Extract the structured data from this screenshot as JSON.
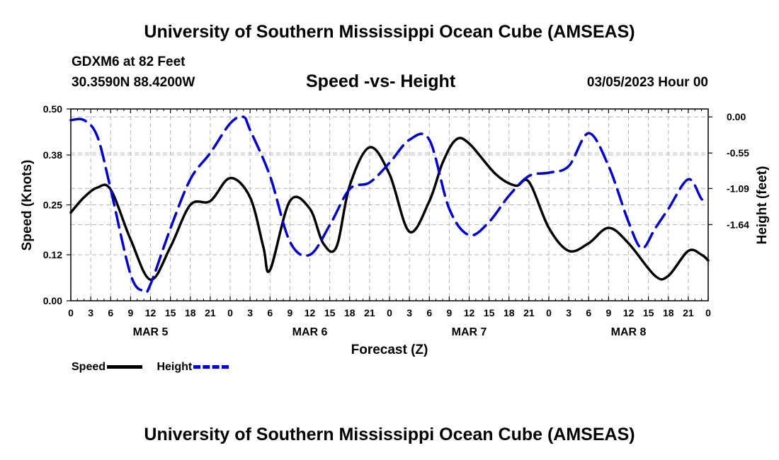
{
  "header": {
    "title": "University of Southern Mississippi Ocean Cube (AMSEAS)",
    "station": "GDXM6 at 82 Feet",
    "coordinates": "30.3590N  88.4200W",
    "subtitle": "Speed -vs- Height",
    "datetime": "03/05/2023 Hour 00"
  },
  "footer": {
    "title": "University of Southern Mississippi Ocean Cube (AMSEAS)"
  },
  "legend": {
    "speed_label": "Speed",
    "height_label": "Height"
  },
  "colors": {
    "speed": "#000000",
    "height": "#0000cc",
    "grid": "#b4b4b4"
  },
  "chart_data": {
    "type": "line",
    "title": "Speed -vs- Height",
    "xlabel": "Forecast (Z)",
    "ylabel": "Speed (Knots)",
    "y2label": "Height (feet)",
    "x_unit": "hours since MAR 5 00Z",
    "xlim": [
      0,
      96
    ],
    "ylim": [
      0,
      0.5
    ],
    "y2lim": [
      0.12,
      -2.8
    ],
    "x_ticks": [
      0,
      3,
      6,
      9,
      12,
      15,
      18,
      21,
      24,
      27,
      30,
      33,
      36,
      39,
      42,
      45,
      48,
      51,
      54,
      57,
      60,
      63,
      66,
      69,
      72,
      75,
      78,
      81,
      84,
      87,
      90,
      93,
      96
    ],
    "x_tick_labels": [
      "0",
      "3",
      "6",
      "9",
      "12",
      "15",
      "18",
      "21",
      "0",
      "3",
      "6",
      "9",
      "12",
      "15",
      "18",
      "21",
      "0",
      "3",
      "6",
      "9",
      "12",
      "15",
      "18",
      "21",
      "0",
      "3",
      "6",
      "9",
      "12",
      "15",
      "18",
      "21",
      "0"
    ],
    "date_labels": [
      {
        "x": 12,
        "label": "MAR 5"
      },
      {
        "x": 36,
        "label": "MAR 6"
      },
      {
        "x": 60,
        "label": "MAR 7"
      },
      {
        "x": 84,
        "label": "MAR 8"
      }
    ],
    "y_ticks": [
      0,
      0.12,
      0.25,
      0.38,
      0.5
    ],
    "y_tick_labels": [
      "0.00",
      "0.12",
      "0.25",
      "0.38",
      "0.50"
    ],
    "y2_ticks": [
      0.0,
      -0.55,
      -1.09,
      -1.64
    ],
    "y2_tick_labels": [
      "0.00",
      "-0.55",
      "-1.09",
      "-1.64"
    ],
    "grid": true,
    "series": [
      {
        "name": "Speed",
        "axis": "left",
        "style": "solid",
        "x": [
          0,
          2,
          4,
          6,
          9,
          12,
          15,
          18,
          21,
          24,
          27,
          29,
          30,
          33,
          36,
          38,
          40,
          42,
          45,
          48,
          51,
          54,
          56,
          58,
          60,
          64,
          67,
          69,
          72,
          75,
          78,
          81,
          84,
          88,
          90,
          93,
          95,
          96
        ],
        "y": [
          0.23,
          0.27,
          0.295,
          0.29,
          0.16,
          0.055,
          0.14,
          0.25,
          0.26,
          0.32,
          0.27,
          0.14,
          0.08,
          0.26,
          0.24,
          0.15,
          0.14,
          0.3,
          0.4,
          0.33,
          0.18,
          0.26,
          0.36,
          0.42,
          0.41,
          0.33,
          0.3,
          0.31,
          0.19,
          0.13,
          0.15,
          0.19,
          0.15,
          0.065,
          0.065,
          0.13,
          0.12,
          0.105
        ]
      },
      {
        "name": "Height",
        "axis": "right",
        "style": "dashed",
        "x": [
          0,
          2,
          4,
          6,
          9,
          11,
          12,
          15,
          18,
          21,
          24,
          26,
          27,
          30,
          33,
          36,
          39,
          42,
          45,
          48,
          51,
          54,
          57,
          60,
          63,
          66,
          69,
          72,
          75,
          78,
          81,
          84,
          86,
          88,
          90,
          93,
          95,
          96
        ],
        "y": [
          -0.05,
          -0.05,
          -0.3,
          -1.1,
          -2.4,
          -2.65,
          -2.55,
          -1.7,
          -0.95,
          -0.55,
          -0.1,
          0.0,
          -0.2,
          -0.9,
          -1.9,
          -2.1,
          -1.65,
          -1.1,
          -1.0,
          -0.7,
          -0.35,
          -0.35,
          -1.4,
          -1.8,
          -1.6,
          -1.2,
          -0.9,
          -0.85,
          -0.75,
          -0.25,
          -0.75,
          -1.6,
          -2.0,
          -1.7,
          -1.4,
          -0.95,
          -1.25,
          -1.3
        ]
      }
    ]
  }
}
